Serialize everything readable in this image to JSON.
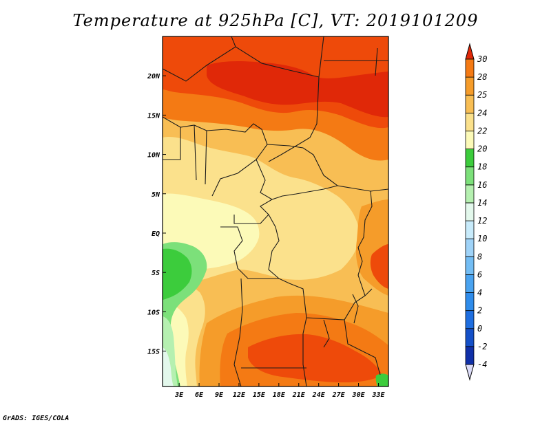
{
  "title": "Temperature at 925hPa [C], VT: 2019101209",
  "footer": "GrADS: IGES/COLA",
  "chart_data": {
    "type": "heatmap",
    "title": "Temperature at 925hPa [C], VT: 2019101209",
    "variable": "Temperature at 925hPa",
    "unit": "C",
    "valid_time": "2019101209",
    "projection": "lat-lon map",
    "x_ticks": [
      "3E",
      "6E",
      "9E",
      "12E",
      "15E",
      "18E",
      "21E",
      "24E",
      "27E",
      "30E",
      "33E"
    ],
    "x_tick_values": [
      3,
      6,
      9,
      12,
      15,
      18,
      21,
      24,
      27,
      30,
      33
    ],
    "y_ticks": [
      "20N",
      "15N",
      "10N",
      "5N",
      "EQ",
      "5S",
      "10S",
      "15S"
    ],
    "y_tick_values": [
      20,
      15,
      10,
      5,
      0,
      -5,
      -10,
      -15
    ],
    "xlim": [
      0.5,
      34.5
    ],
    "ylim": [
      -19.5,
      25
    ],
    "colorbar": {
      "labels": [
        "-4",
        "-2",
        "0",
        "2",
        "4",
        "6",
        "8",
        "10",
        "12",
        "14",
        "16",
        "18",
        "20",
        "22",
        "24",
        "25",
        "28",
        "30"
      ],
      "colors": [
        "#0b0b78",
        "#1030a8",
        "#1450c8",
        "#1e6ee0",
        "#2f8ceb",
        "#4aa3f0",
        "#73bdf4",
        "#9fd3f8",
        "#c8ebfb",
        "#e3f8ec",
        "#b5f0b0",
        "#7ce07a",
        "#3ccc3c",
        "#fcfab8",
        "#fbe18c",
        "#f8be54",
        "#f59c2a",
        "#f47a14",
        "#ee4a0a",
        "#e02808"
      ],
      "extend_low_color": "#dcdcf8",
      "extend_high_color": "#e02808"
    }
  }
}
